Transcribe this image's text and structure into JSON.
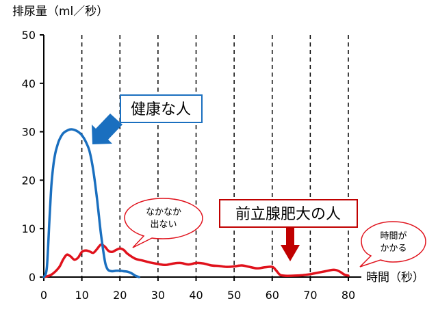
{
  "chart_data": {
    "type": "line",
    "ylabel": "排尿量（ml／秒）",
    "xlabel": "時間（秒）",
    "xlim": [
      0,
      80
    ],
    "ylim": [
      0,
      50
    ],
    "xticks": [
      "0",
      "10",
      "20",
      "30",
      "40",
      "50",
      "60",
      "70",
      "80"
    ],
    "yticks": [
      "0",
      "10",
      "20",
      "30",
      "40",
      "50"
    ],
    "grid": "vertical dashed lines every 10 seconds",
    "series": [
      {
        "name": "健康な人",
        "color": "#1a6fbf",
        "x": [
          0,
          0.8,
          1.5,
          2,
          2.5,
          3,
          3.5,
          4,
          5,
          6,
          7,
          8,
          9,
          10,
          11,
          12,
          13,
          14,
          15,
          16,
          16.5,
          17,
          18,
          19,
          20,
          21,
          22,
          23,
          24,
          25
        ],
        "y": [
          0,
          2,
          12,
          19,
          23,
          25.5,
          27,
          28.2,
          29.6,
          30.2,
          30.5,
          30.4,
          30,
          29.3,
          28,
          26,
          22,
          16,
          9,
          3.5,
          2,
          1.4,
          1.2,
          1.3,
          1.3,
          1.2,
          1.1,
          0.8,
          0.3,
          0
        ]
      },
      {
        "name": "前立腺肥大の人",
        "color": "#e0121c",
        "x": [
          0,
          2,
          4,
          5,
          6,
          7,
          8,
          9,
          10,
          11,
          12,
          13,
          14,
          15,
          16,
          17,
          18,
          19,
          20,
          21,
          22,
          24,
          26,
          28,
          30,
          32,
          34,
          36,
          38,
          40,
          42,
          44,
          46,
          48,
          50,
          52,
          54,
          56,
          58,
          60,
          61,
          62,
          63,
          64,
          66,
          68,
          70,
          72,
          74,
          76,
          77,
          78,
          79,
          80
        ],
        "y": [
          0,
          0.5,
          2,
          3.5,
          4.6,
          4.3,
          3.6,
          4,
          5.2,
          5.5,
          5.3,
          5,
          5.8,
          6.7,
          6.3,
          5.4,
          5.2,
          5.6,
          5.9,
          5.6,
          4.8,
          3.8,
          3.4,
          3,
          2.7,
          2.5,
          2.8,
          2.9,
          2.6,
          2.9,
          2.8,
          2.4,
          2.3,
          2.1,
          2.2,
          2.4,
          2.1,
          1.8,
          2,
          2.1,
          1.4,
          0.5,
          0.3,
          0.25,
          0.3,
          0.4,
          0.6,
          0.9,
          1.2,
          1.5,
          1.4,
          1,
          0.5,
          0.3
        ]
      }
    ],
    "annotations": {
      "healthy_label": "健康な人",
      "bph_label": "前立腺肥大の人",
      "bubble_left_line1": "なかなか",
      "bubble_left_line2": "出ない",
      "bubble_right_line1": "時間が",
      "bubble_right_line2": "かかる"
    },
    "colors": {
      "healthy": "#1a6fbf",
      "bph": "#e0121c",
      "arrow_blue": "#1a6fbf",
      "arrow_red": "#c00000",
      "bubble_border": "#e0121c"
    }
  }
}
